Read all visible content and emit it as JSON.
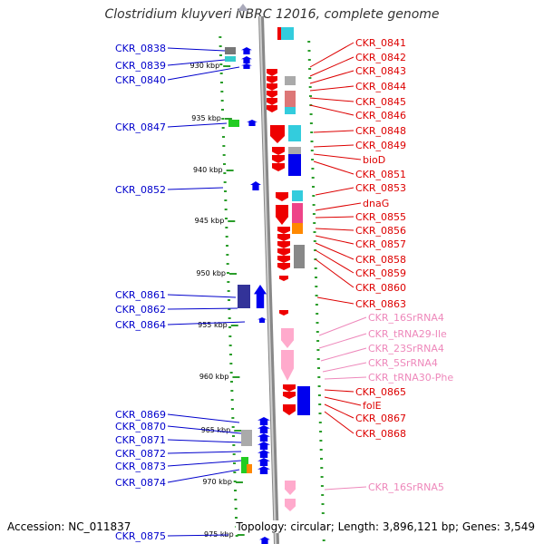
{
  "title": "Clostridium kluyveri NBRC 12016, complete genome",
  "footer": {
    "accession": "Accession: NC_011837",
    "topology": "Topology: circular; Length: 3,896,121 bp; Genes: 3,549"
  },
  "colors": {
    "left_gene_label": "#0000cc",
    "right_gene_label": "#dd0000",
    "rna_label": "#ee88bb",
    "forward_gene": "#0000ee",
    "reverse_gene": "#ee0000",
    "rna_gene": "#ffaacc",
    "axis": "#999999"
  },
  "scale_marks": [
    "930 kbp",
    "935 kbp",
    "940 kbp",
    "945 kbp",
    "950 kbp",
    "955 kbp",
    "960 kbp",
    "965 kbp",
    "970 kbp",
    "975 kbp"
  ],
  "left_labels": [
    "CKR_0838",
    "CKR_0839",
    "CKR_0840",
    "CKR_0847",
    "CKR_0852",
    "CKR_0861",
    "CKR_0862",
    "CKR_0864",
    "CKR_0869",
    "CKR_0870",
    "CKR_0871",
    "CKR_0872",
    "CKR_0873",
    "CKR_0874",
    "CKR_0875"
  ],
  "right_labels": [
    "CKR_0841",
    "CKR_0842",
    "CKR_0843",
    "CKR_0844",
    "CKR_0845",
    "CKR_0846",
    "CKR_0848",
    "CKR_0849",
    "bioD",
    "CKR_0851",
    "CKR_0853",
    "dnaG",
    "CKR_0855",
    "CKR_0856",
    "CKR_0857",
    "CKR_0858",
    "CKR_0859",
    "CKR_0860",
    "CKR_0863",
    "CKR_16SrRNA4",
    "CKR_tRNA29-Ile",
    "CKR_23SrRNA4",
    "CKR_5SrRNA4",
    "CKR_tRNA30-Phe",
    "CKR_0865",
    "folE",
    "CKR_0867",
    "CKR_0868",
    "CKR_16SrRNA5"
  ]
}
